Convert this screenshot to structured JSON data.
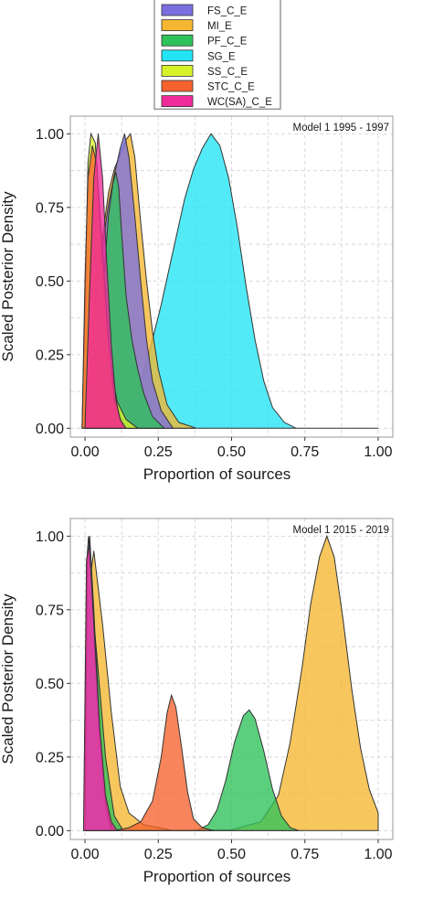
{
  "legend": {
    "entries": [
      {
        "label": "FS_C_E",
        "color": "#7b6fe0"
      },
      {
        "label": "MI_E",
        "color": "#f5b731"
      },
      {
        "label": "PF_C_E",
        "color": "#2ec25a"
      },
      {
        "label": "SG_E",
        "color": "#22e4f5"
      },
      {
        "label": "SS_C_E",
        "color": "#d8f22a"
      },
      {
        "label": "STC_C_E",
        "color": "#f5622d"
      },
      {
        "label": "WC(SA)_C_E",
        "color": "#f02b9a"
      }
    ]
  },
  "chart_data": [
    {
      "type": "area",
      "annotation": "Model 1  1995 - 1997",
      "xlabel": "Proportion of sources",
      "ylabel": "Scaled Posterior Density",
      "xlim": [
        -0.05,
        1.05
      ],
      "ylim": [
        -0.03,
        1.06
      ],
      "xticks": [
        "0.00",
        "0.25",
        "0.50",
        "0.75",
        "1.00"
      ],
      "yticks": [
        "0.00",
        "0.25",
        "0.50",
        "0.75",
        "1.00"
      ],
      "grid": true,
      "series": [
        {
          "name": "SG_E",
          "color": "#22e4f5",
          "points": [
            [
              0.1,
              0
            ],
            [
              0.14,
              0.04
            ],
            [
              0.18,
              0.13
            ],
            [
              0.22,
              0.26
            ],
            [
              0.26,
              0.42
            ],
            [
              0.3,
              0.6
            ],
            [
              0.34,
              0.78
            ],
            [
              0.37,
              0.88
            ],
            [
              0.4,
              0.95
            ],
            [
              0.43,
              1.0
            ],
            [
              0.46,
              0.96
            ],
            [
              0.49,
              0.85
            ],
            [
              0.52,
              0.68
            ],
            [
              0.55,
              0.48
            ],
            [
              0.58,
              0.3
            ],
            [
              0.61,
              0.16
            ],
            [
              0.64,
              0.07
            ],
            [
              0.68,
              0.02
            ],
            [
              0.72,
              0
            ],
            [
              1.0,
              0
            ]
          ]
        },
        {
          "name": "MI_E",
          "color": "#f5b731",
          "points": [
            [
              0.0,
              0
            ],
            [
              0.02,
              0.2
            ],
            [
              0.04,
              0.55
            ],
            [
              0.06,
              0.65
            ],
            [
              0.08,
              0.8
            ],
            [
              0.1,
              0.88
            ],
            [
              0.12,
              0.93
            ],
            [
              0.14,
              0.98
            ],
            [
              0.155,
              1.0
            ],
            [
              0.17,
              0.92
            ],
            [
              0.19,
              0.7
            ],
            [
              0.21,
              0.5
            ],
            [
              0.23,
              0.33
            ],
            [
              0.25,
              0.2
            ],
            [
              0.28,
              0.08
            ],
            [
              0.32,
              0.02
            ],
            [
              0.38,
              0
            ]
          ]
        },
        {
          "name": "FS_C_E",
          "color": "#7b6fe0",
          "points": [
            [
              0.0,
              0
            ],
            [
              0.02,
              0.2
            ],
            [
              0.04,
              0.5
            ],
            [
              0.06,
              0.62
            ],
            [
              0.08,
              0.76
            ],
            [
              0.1,
              0.86
            ],
            [
              0.12,
              0.95
            ],
            [
              0.135,
              1.0
            ],
            [
              0.15,
              0.92
            ],
            [
              0.17,
              0.72
            ],
            [
              0.19,
              0.5
            ],
            [
              0.21,
              0.3
            ],
            [
              0.23,
              0.16
            ],
            [
              0.26,
              0.06
            ],
            [
              0.3,
              0
            ]
          ]
        },
        {
          "name": "PF_C_E",
          "color": "#2ec25a",
          "points": [
            [
              0.02,
              0
            ],
            [
              0.04,
              0.2
            ],
            [
              0.06,
              0.45
            ],
            [
              0.08,
              0.72
            ],
            [
              0.095,
              0.83
            ],
            [
              0.105,
              0.87
            ],
            [
              0.115,
              0.82
            ],
            [
              0.125,
              0.66
            ],
            [
              0.14,
              0.45
            ],
            [
              0.16,
              0.3
            ],
            [
              0.18,
              0.2
            ],
            [
              0.2,
              0.12
            ],
            [
              0.23,
              0.04
            ],
            [
              0.27,
              0
            ]
          ]
        },
        {
          "name": "SS_C_E",
          "color": "#d8f22a",
          "points": [
            [
              -0.01,
              0
            ],
            [
              0.0,
              0.4
            ],
            [
              0.01,
              0.9
            ],
            [
              0.02,
              1.0
            ],
            [
              0.035,
              0.97
            ],
            [
              0.05,
              0.7
            ],
            [
              0.07,
              0.4
            ],
            [
              0.09,
              0.2
            ],
            [
              0.11,
              0.09
            ],
            [
              0.14,
              0.03
            ],
            [
              0.18,
              0
            ]
          ]
        },
        {
          "name": "STC_C_E",
          "color": "#f5622d",
          "points": [
            [
              -0.01,
              0
            ],
            [
              0.0,
              0.5
            ],
            [
              0.01,
              0.85
            ],
            [
              0.025,
              0.96
            ],
            [
              0.04,
              0.9
            ],
            [
              0.06,
              0.6
            ],
            [
              0.08,
              0.3
            ],
            [
              0.1,
              0.1
            ],
            [
              0.13,
              0
            ]
          ]
        },
        {
          "name": "WC(SA)_C_E",
          "color": "#f02b9a",
          "points": [
            [
              0.0,
              0
            ],
            [
              0.015,
              0.45
            ],
            [
              0.03,
              0.85
            ],
            [
              0.045,
              1.0
            ],
            [
              0.06,
              0.85
            ],
            [
              0.075,
              0.55
            ],
            [
              0.09,
              0.28
            ],
            [
              0.105,
              0.1
            ],
            [
              0.12,
              0.03
            ],
            [
              0.14,
              0
            ]
          ]
        }
      ]
    },
    {
      "type": "area",
      "annotation": "Model 1  2015 - 2019",
      "xlabel": "Proportion of sources",
      "ylabel": "Scaled Posterior Density",
      "xlim": [
        -0.05,
        1.05
      ],
      "ylim": [
        -0.03,
        1.06
      ],
      "xticks": [
        "0.00",
        "0.25",
        "0.50",
        "0.75",
        "1.00"
      ],
      "yticks": [
        "0.00",
        "0.25",
        "0.50",
        "0.75",
        "1.00"
      ],
      "grid": true,
      "series": [
        {
          "name": "MI_E",
          "color": "#f5b731",
          "points": [
            [
              0.0,
              0
            ],
            [
              0.01,
              0.8
            ],
            [
              0.03,
              0.95
            ],
            [
              0.06,
              0.7
            ],
            [
              0.09,
              0.4
            ],
            [
              0.12,
              0.15
            ],
            [
              0.15,
              0.06
            ],
            [
              0.2,
              0.02
            ],
            [
              0.3,
              0
            ],
            [
              0.5,
              0.003
            ],
            [
              0.6,
              0.03
            ],
            [
              0.66,
              0.12
            ],
            [
              0.7,
              0.3
            ],
            [
              0.74,
              0.55
            ],
            [
              0.77,
              0.77
            ],
            [
              0.8,
              0.93
            ],
            [
              0.825,
              1.0
            ],
            [
              0.85,
              0.93
            ],
            [
              0.88,
              0.72
            ],
            [
              0.91,
              0.48
            ],
            [
              0.94,
              0.28
            ],
            [
              0.97,
              0.14
            ],
            [
              1.0,
              0.06
            ],
            [
              1.0,
              0
            ]
          ]
        },
        {
          "name": "PF_C_E",
          "color": "#2ec25a",
          "points": [
            [
              0.0,
              0
            ],
            [
              0.01,
              0.7
            ],
            [
              0.02,
              0.82
            ],
            [
              0.04,
              0.6
            ],
            [
              0.07,
              0.25
            ],
            [
              0.1,
              0.05
            ],
            [
              0.13,
              0
            ],
            [
              0.38,
              0
            ],
            [
              0.42,
              0.02
            ],
            [
              0.45,
              0.07
            ],
            [
              0.48,
              0.17
            ],
            [
              0.51,
              0.3
            ],
            [
              0.54,
              0.39
            ],
            [
              0.56,
              0.41
            ],
            [
              0.58,
              0.38
            ],
            [
              0.61,
              0.27
            ],
            [
              0.64,
              0.14
            ],
            [
              0.67,
              0.05
            ],
            [
              0.7,
              0.01
            ],
            [
              0.73,
              0
            ]
          ]
        },
        {
          "name": "STC_C_E",
          "color": "#f5622d",
          "points": [
            [
              0.1,
              0
            ],
            [
              0.15,
              0.01
            ],
            [
              0.19,
              0.03
            ],
            [
              0.23,
              0.1
            ],
            [
              0.26,
              0.25
            ],
            [
              0.28,
              0.4
            ],
            [
              0.295,
              0.46
            ],
            [
              0.31,
              0.42
            ],
            [
              0.33,
              0.28
            ],
            [
              0.35,
              0.13
            ],
            [
              0.37,
              0.04
            ],
            [
              0.4,
              0.01
            ],
            [
              0.44,
              0
            ]
          ]
        },
        {
          "name": "SG_E",
          "color": "#22e4f5",
          "points": [
            [
              0.0,
              0
            ],
            [
              0.005,
              0.9
            ],
            [
              0.012,
              1.0
            ],
            [
              0.02,
              0.85
            ],
            [
              0.035,
              0.5
            ],
            [
              0.05,
              0.2
            ],
            [
              0.07,
              0.05
            ],
            [
              0.1,
              0
            ]
          ]
        },
        {
          "name": "SS_C_E",
          "color": "#d8f22a",
          "points": [
            [
              0.0,
              0
            ],
            [
              0.005,
              0.85
            ],
            [
              0.015,
              0.98
            ],
            [
              0.025,
              0.8
            ],
            [
              0.04,
              0.45
            ],
            [
              0.06,
              0.15
            ],
            [
              0.08,
              0.03
            ],
            [
              0.1,
              0
            ]
          ]
        },
        {
          "name": "FS_C_E",
          "color": "#7b6fe0",
          "points": [
            [
              0.0,
              0
            ],
            [
              0.008,
              0.9
            ],
            [
              0.016,
              1.0
            ],
            [
              0.03,
              0.75
            ],
            [
              0.05,
              0.35
            ],
            [
              0.07,
              0.1
            ],
            [
              0.09,
              0
            ]
          ]
        },
        {
          "name": "WC(SA)_C_E",
          "color": "#f02b9a",
          "points": [
            [
              -0.005,
              0
            ],
            [
              0.005,
              0.92
            ],
            [
              0.015,
              0.97
            ],
            [
              0.03,
              0.7
            ],
            [
              0.05,
              0.35
            ],
            [
              0.07,
              0.12
            ],
            [
              0.09,
              0.03
            ],
            [
              0.11,
              0
            ]
          ]
        }
      ]
    }
  ]
}
